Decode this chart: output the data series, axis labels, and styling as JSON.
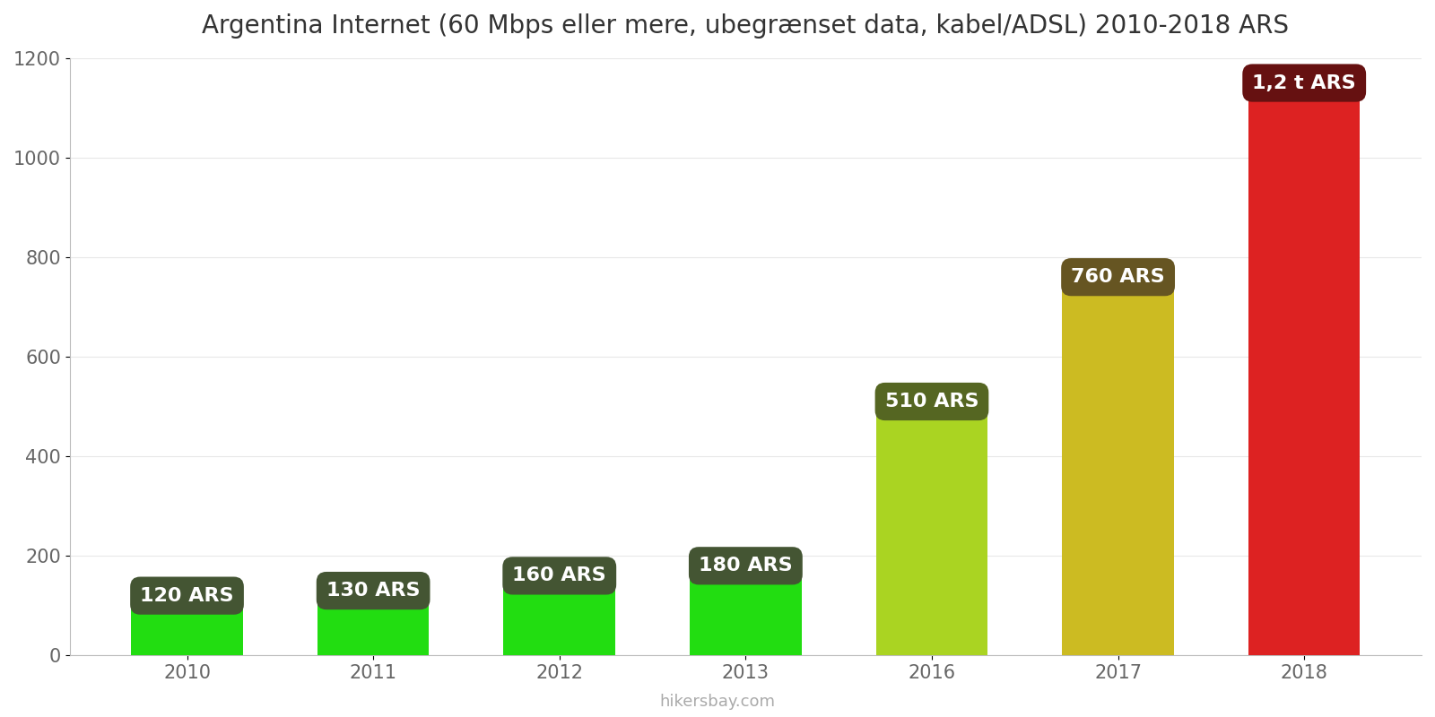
{
  "title": "Argentina Internet (60 Mbps eller mere, ubegrænset data, kabel/ADSL) 2010-2018 ARS",
  "years": [
    2010,
    2011,
    2012,
    2013,
    2016,
    2017,
    2018
  ],
  "values": [
    120,
    130,
    160,
    180,
    510,
    760,
    1150
  ],
  "bar_colors": [
    "#22dd11",
    "#22dd11",
    "#22dd11",
    "#22dd11",
    "#aad422",
    "#ccbb22",
    "#dd2222"
  ],
  "label_bg_colors": [
    "#445533",
    "#445533",
    "#445533",
    "#445533",
    "#556622",
    "#665522",
    "#661111"
  ],
  "labels": [
    "120 ARS",
    "130 ARS",
    "160 ARS",
    "180 ARS",
    "510 ARS",
    "760 ARS",
    "1,2 t ARS"
  ],
  "ylim": [
    0,
    1200
  ],
  "yticks": [
    0,
    200,
    400,
    600,
    800,
    1000,
    1200
  ],
  "watermark": "hikersbay.com",
  "background_color": "#ffffff",
  "title_fontsize": 20,
  "bar_width": 0.6
}
